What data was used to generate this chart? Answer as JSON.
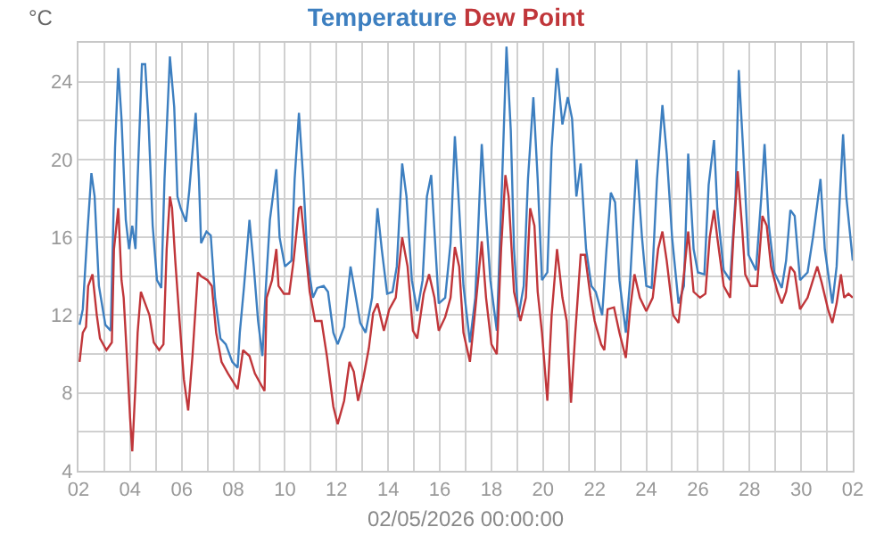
{
  "chart_data": {
    "type": "line",
    "xlabel": "02/05/2026 00:00:00",
    "ylabel": "°C",
    "grid": true,
    "legend": false,
    "marker": "none",
    "line_style": "solid",
    "xlim": [
      "2026-04-02",
      "2026-05-02"
    ],
    "xticks": [
      {
        "value": "2026-04-02",
        "label": "02"
      },
      {
        "value": "2026-04-03",
        "label": null
      },
      {
        "value": "2026-04-04",
        "label": "04"
      },
      {
        "value": "2026-04-05",
        "label": null
      },
      {
        "value": "2026-04-06",
        "label": "06"
      },
      {
        "value": "2026-04-07",
        "label": null
      },
      {
        "value": "2026-04-08",
        "label": "08"
      },
      {
        "value": "2026-04-09",
        "label": null
      },
      {
        "value": "2026-04-10",
        "label": "10"
      },
      {
        "value": "2026-04-11",
        "label": null
      },
      {
        "value": "2026-04-12",
        "label": "12"
      },
      {
        "value": "2026-04-13",
        "label": null
      },
      {
        "value": "2026-04-14",
        "label": "14"
      },
      {
        "value": "2026-04-15",
        "label": null
      },
      {
        "value": "2026-04-16",
        "label": "16"
      },
      {
        "value": "2026-04-17",
        "label": null
      },
      {
        "value": "2026-04-18",
        "label": "18"
      },
      {
        "value": "2026-04-19",
        "label": null
      },
      {
        "value": "2026-04-20",
        "label": "20"
      },
      {
        "value": "2026-04-21",
        "label": null
      },
      {
        "value": "2026-04-22",
        "label": "22"
      },
      {
        "value": "2026-04-23",
        "label": null
      },
      {
        "value": "2026-04-24",
        "label": "24"
      },
      {
        "value": "2026-04-25",
        "label": null
      },
      {
        "value": "2026-04-26",
        "label": "26"
      },
      {
        "value": "2026-04-27",
        "label": null
      },
      {
        "value": "2026-04-28",
        "label": "28"
      },
      {
        "value": "2026-04-29",
        "label": null
      },
      {
        "value": "2026-04-30",
        "label": "30"
      },
      {
        "value": "2026-05-01",
        "label": null
      },
      {
        "value": "2026-05-02",
        "label": "02"
      }
    ],
    "ylim": [
      4,
      26
    ],
    "yticks": [
      4,
      {
        "value": 6,
        "label": null
      },
      8,
      {
        "value": 10,
        "label": null
      },
      12,
      {
        "value": 14,
        "label": null
      },
      16,
      {
        "value": 18,
        "label": null
      },
      20,
      {
        "value": 22,
        "label": null
      },
      24,
      {
        "value": 26,
        "label": null
      }
    ],
    "series": [
      {
        "name": "Temperature",
        "color": "#3d7fc0",
        "x": [
          "2026-04-02T01:00",
          "2026-04-02T04:00",
          "2026-04-02T08:00",
          "2026-04-02T12:00",
          "2026-04-02T15:00",
          "2026-04-02T19:00",
          "2026-04-03T01:00",
          "2026-04-03T06:00",
          "2026-04-03T10:00",
          "2026-04-03T13:00",
          "2026-04-03T16:00",
          "2026-04-03T20:00",
          "2026-04-03T23:00",
          "2026-04-04T02:00",
          "2026-04-04T05:00",
          "2026-04-04T07:00",
          "2026-04-04T11:00",
          "2026-04-04T14:00",
          "2026-04-04T17:00",
          "2026-04-04T21:00",
          "2026-04-05T01:00",
          "2026-04-05T05:00",
          "2026-04-05T08:00",
          "2026-04-05T13:00",
          "2026-04-05T17:00",
          "2026-04-05T20:00",
          "2026-04-05T23:00",
          "2026-04-06T04:00",
          "2026-04-06T07:00",
          "2026-04-06T13:00",
          "2026-04-06T16:00",
          "2026-04-06T18:00",
          "2026-04-06T23:00",
          "2026-04-07T03:00",
          "2026-04-07T07:00",
          "2026-04-07T12:00",
          "2026-04-07T17:00",
          "2026-04-07T23:00",
          "2026-04-08T04:00",
          "2026-04-08T06:00",
          "2026-04-08T10:00",
          "2026-04-08T15:00",
          "2026-04-08T19:00",
          "2026-04-08T23:00",
          "2026-04-09T03:00",
          "2026-04-09T06:00",
          "2026-04-09T10:00",
          "2026-04-09T16:00",
          "2026-04-09T19:00",
          "2026-04-10T00:00",
          "2026-04-10T06:00",
          "2026-04-10T09:00",
          "2026-04-10T13:00",
          "2026-04-10T17:00",
          "2026-04-10T21:00",
          "2026-04-11T02:00",
          "2026-04-11T06:00",
          "2026-04-11T12:00",
          "2026-04-11T16:00",
          "2026-04-11T21:00",
          "2026-04-12T01:00",
          "2026-04-12T07:00",
          "2026-04-12T13:00",
          "2026-04-12T18:00",
          "2026-04-12T22:00",
          "2026-04-13T03:00",
          "2026-04-13T09:00",
          "2026-04-13T14:00",
          "2026-04-13T18:00",
          "2026-04-13T23:00",
          "2026-04-14T04:00",
          "2026-04-14T08:00",
          "2026-04-14T13:00",
          "2026-04-14T17:00",
          "2026-04-14T22:00",
          "2026-04-15T03:00",
          "2026-04-15T08:00",
          "2026-04-15T12:00",
          "2026-04-15T16:00",
          "2026-04-15T20:00",
          "2026-04-15T23:00",
          "2026-04-16T05:00",
          "2026-04-16T10:00",
          "2026-04-16T14:00",
          "2026-04-16T18:00",
          "2026-04-16T22:00",
          "2026-04-17T04:00",
          "2026-04-17T09:00",
          "2026-04-17T15:00",
          "2026-04-17T19:00",
          "2026-04-17T23:00",
          "2026-04-18T05:00",
          "2026-04-18T10:00",
          "2026-04-18T14:00",
          "2026-04-18T18:00",
          "2026-04-18T21:00",
          "2026-04-19T01:00",
          "2026-04-19T06:00",
          "2026-04-19T10:00",
          "2026-04-19T15:00",
          "2026-04-19T19:00",
          "2026-04-19T23:00",
          "2026-04-20T04:00",
          "2026-04-20T08:00",
          "2026-04-20T13:00",
          "2026-04-20T18:00",
          "2026-04-20T23:00",
          "2026-04-21T03:00",
          "2026-04-21T07:00",
          "2026-04-21T11:00",
          "2026-04-21T16:00",
          "2026-04-21T21:00",
          "2026-04-22T01:00",
          "2026-04-22T07:00",
          "2026-04-22T11:00",
          "2026-04-22T15:00",
          "2026-04-22T19:00",
          "2026-04-22T23:00",
          "2026-04-23T05:00",
          "2026-04-23T09:00",
          "2026-04-23T15:00",
          "2026-04-23T20:00",
          "2026-04-24T00:00",
          "2026-04-24T05:00",
          "2026-04-24T10:00",
          "2026-04-24T15:00",
          "2026-04-24T19:00",
          "2026-04-25T00:00",
          "2026-04-25T06:00",
          "2026-04-25T11:00",
          "2026-04-25T15:00",
          "2026-04-25T20:00",
          "2026-04-26T00:00",
          "2026-04-26T06:00",
          "2026-04-26T10:00",
          "2026-04-26T15:00",
          "2026-04-26T18:00",
          "2026-04-27T00:00",
          "2026-04-27T06:00",
          "2026-04-27T11:00",
          "2026-04-27T14:00",
          "2026-04-27T18:00",
          "2026-04-27T23:00",
          "2026-04-28T06:00",
          "2026-04-28T11:00",
          "2026-04-28T14:00",
          "2026-04-28T18:00",
          "2026-04-28T23:00",
          "2026-04-29T06:00",
          "2026-04-29T10:00",
          "2026-04-29T14:00",
          "2026-04-29T18:00",
          "2026-04-29T23:00",
          "2026-04-30T06:00",
          "2026-04-30T11:00",
          "2026-04-30T18:00",
          "2026-04-30T22:00",
          "2026-05-01T05:00",
          "2026-05-01T09:00",
          "2026-05-01T12:00",
          "2026-05-01T15:00",
          "2026-05-01T18:00",
          "2026-05-02T00:00"
        ],
        "values": [
          11.5,
          12.3,
          16,
          19.3,
          18.1,
          13.5,
          11.5,
          11.2,
          20.6,
          24.7,
          22.1,
          16.9,
          15.4,
          16.6,
          15.4,
          19,
          24.9,
          24.9,
          22.1,
          16.6,
          13.8,
          13.4,
          19,
          25.3,
          22.7,
          18.1,
          17.5,
          16.8,
          18.4,
          22.4,
          19,
          15.7,
          16.3,
          16.1,
          12.9,
          10.8,
          10.5,
          9.6,
          9.3,
          11.1,
          13.5,
          16.9,
          14.5,
          11.7,
          9.9,
          13.2,
          16.9,
          19.5,
          16,
          14.5,
          14.8,
          19,
          22.4,
          19,
          14.8,
          12.9,
          13.4,
          13.5,
          13.2,
          11.1,
          10.5,
          11.4,
          14.5,
          12.9,
          11.6,
          11.1,
          12.9,
          17.5,
          15.4,
          13.1,
          13.2,
          14.5,
          19.8,
          18.1,
          13.8,
          12.2,
          13.8,
          18.1,
          19.2,
          15.4,
          12.6,
          12.9,
          15.7,
          21.2,
          17.5,
          13.5,
          10.6,
          12.9,
          20.8,
          17.1,
          13.8,
          11.2,
          19,
          25.8,
          21.5,
          15.4,
          11.9,
          13.5,
          19,
          23.2,
          19,
          13.8,
          14.2,
          20.6,
          24.7,
          21.8,
          23.2,
          22.1,
          18.1,
          19.8,
          15.4,
          13.5,
          13.2,
          12,
          15.4,
          18.3,
          17.8,
          13.8,
          11.1,
          13.8,
          20,
          16,
          13.5,
          13.4,
          19,
          22.8,
          20.3,
          16,
          12.6,
          13.5,
          20.3,
          15.4,
          14.2,
          14.1,
          18.7,
          21,
          17.5,
          14.3,
          13.8,
          18.1,
          24.6,
          20.6,
          15.1,
          14.3,
          18.1,
          20.8,
          16.6,
          14.2,
          13.4,
          14.8,
          17.4,
          17.1,
          13.8,
          14.2,
          16,
          19,
          15.4,
          12.6,
          14.5,
          18.1,
          21.3,
          18.1,
          14.8
        ]
      },
      {
        "name": "Dew Point",
        "color": "#c0363a",
        "x": [
          "2026-04-02T01:00",
          "2026-04-02T04:00",
          "2026-04-02T07:00",
          "2026-04-02T09:00",
          "2026-04-02T13:00",
          "2026-04-02T17:00",
          "2026-04-02T20:00",
          "2026-04-03T02:00",
          "2026-04-03T07:00",
          "2026-04-03T09:00",
          "2026-04-03T13:00",
          "2026-04-03T16:00",
          "2026-04-03T18:00",
          "2026-04-03T21:00",
          "2026-04-04T00:00",
          "2026-04-04T02:00",
          "2026-04-04T05:00",
          "2026-04-04T07:00",
          "2026-04-04T10:00",
          "2026-04-04T14:00",
          "2026-04-04T18:00",
          "2026-04-04T22:00",
          "2026-04-05T03:00",
          "2026-04-05T07:00",
          "2026-04-05T10:00",
          "2026-04-05T13:00",
          "2026-04-05T15:00",
          "2026-04-05T18:00",
          "2026-04-05T22:00",
          "2026-04-06T02:00",
          "2026-04-06T06:00",
          "2026-04-06T10:00",
          "2026-04-06T15:00",
          "2026-04-06T18:00",
          "2026-04-07T00:00",
          "2026-04-07T04:00",
          "2026-04-07T08:00",
          "2026-04-07T13:00",
          "2026-04-07T19:00",
          "2026-04-08T04:00",
          "2026-04-08T09:00",
          "2026-04-08T15:00",
          "2026-04-08T20:00",
          "2026-04-09T02:00",
          "2026-04-09T05:00",
          "2026-04-09T07:00",
          "2026-04-09T12:00",
          "2026-04-09T16:00",
          "2026-04-09T18:00",
          "2026-04-09T23:00",
          "2026-04-10T04:00",
          "2026-04-10T08:00",
          "2026-04-10T13:00",
          "2026-04-10T15:00",
          "2026-04-10T19:00",
          "2026-04-10T23:00",
          "2026-04-11T04:00",
          "2026-04-11T10:00",
          "2026-04-11T15:00",
          "2026-04-11T21:00",
          "2026-04-12T01:00",
          "2026-04-12T07:00",
          "2026-04-12T12:00",
          "2026-04-12T16:00",
          "2026-04-12T20:00",
          "2026-04-13T01:00",
          "2026-04-13T06:00",
          "2026-04-13T10:00",
          "2026-04-13T14:00",
          "2026-04-13T20:00",
          "2026-04-14T01:00",
          "2026-04-14T07:00",
          "2026-04-14T13:00",
          "2026-04-14T18:00",
          "2026-04-14T23:00",
          "2026-04-15T03:00",
          "2026-04-15T09:00",
          "2026-04-15T14:00",
          "2026-04-15T19:00",
          "2026-04-15T23:00",
          "2026-04-16T05:00",
          "2026-04-16T10:00",
          "2026-04-16T14:00",
          "2026-04-16T18:00",
          "2026-04-16T22:00",
          "2026-04-17T04:00",
          "2026-04-17T09:00",
          "2026-04-17T15:00",
          "2026-04-17T19:00",
          "2026-04-18T00:00",
          "2026-04-18T05:00",
          "2026-04-18T09:00",
          "2026-04-18T13:00",
          "2026-04-18T16:00",
          "2026-04-18T21:00",
          "2026-04-19T03:00",
          "2026-04-19T08:00",
          "2026-04-19T12:00",
          "2026-04-19T16:00",
          "2026-04-19T19:00",
          "2026-04-19T23:00",
          "2026-04-20T04:00",
          "2026-04-20T08:00",
          "2026-04-20T13:00",
          "2026-04-20T18:00",
          "2026-04-20T22:00",
          "2026-04-21T02:00",
          "2026-04-21T06:00",
          "2026-04-21T11:00",
          "2026-04-21T15:00",
          "2026-04-21T20:00",
          "2026-04-22T00:00",
          "2026-04-22T06:00",
          "2026-04-22T09:00",
          "2026-04-22T12:00",
          "2026-04-22T18:00",
          "2026-04-22T23:00",
          "2026-04-23T05:00",
          "2026-04-23T09:00",
          "2026-04-23T13:00",
          "2026-04-23T18:00",
          "2026-04-24T00:00",
          "2026-04-24T06:00",
          "2026-04-24T11:00",
          "2026-04-24T15:00",
          "2026-04-24T19:00",
          "2026-04-25T01:00",
          "2026-04-25T06:00",
          "2026-04-25T11:00",
          "2026-04-25T15:00",
          "2026-04-25T20:00",
          "2026-04-26T02:00",
          "2026-04-26T07:00",
          "2026-04-26T11:00",
          "2026-04-26T15:00",
          "2026-04-26T18:00",
          "2026-04-27T00:00",
          "2026-04-27T06:00",
          "2026-04-27T09:00",
          "2026-04-27T13:00",
          "2026-04-27T17:00",
          "2026-04-27T20:00",
          "2026-04-28T01:00",
          "2026-04-28T07:00",
          "2026-04-28T12:00",
          "2026-04-28T16:00",
          "2026-04-28T20:00",
          "2026-04-29T02:00",
          "2026-04-29T06:00",
          "2026-04-29T10:00",
          "2026-04-29T14:00",
          "2026-04-29T18:00",
          "2026-04-29T23:00",
          "2026-04-30T06:00",
          "2026-04-30T11:00",
          "2026-04-30T15:00",
          "2026-04-30T19:00",
          "2026-05-01T01:00",
          "2026-05-01T05:00",
          "2026-05-01T09:00",
          "2026-05-01T13:00",
          "2026-05-01T16:00",
          "2026-05-01T20:00",
          "2026-05-02T00:00"
        ],
        "values": [
          9.6,
          11.1,
          11.4,
          13.5,
          14.1,
          12,
          10.8,
          10.2,
          10.6,
          15.4,
          17.5,
          13.8,
          12.9,
          9.9,
          6.7,
          5,
          8.4,
          11.1,
          13.2,
          12.6,
          12,
          10.6,
          10.2,
          10.5,
          15.4,
          18.1,
          17.5,
          14.8,
          11.7,
          8.7,
          7.1,
          9.9,
          14.2,
          14,
          13.8,
          13.5,
          11.1,
          9.6,
          9,
          8.2,
          10.2,
          9.9,
          9,
          8.4,
          8.1,
          12.9,
          13.8,
          15.4,
          13.5,
          13.1,
          13.1,
          14.8,
          17.5,
          17.6,
          15.4,
          13.2,
          11.7,
          11.7,
          9.9,
          7.3,
          6.4,
          7.6,
          9.6,
          9.1,
          7.6,
          8.8,
          10.3,
          12.1,
          12.6,
          11.2,
          12.3,
          12.9,
          16,
          14.5,
          11.2,
          10.8,
          13.1,
          14.1,
          12.9,
          11.2,
          11.9,
          12.9,
          15.5,
          14.5,
          11.1,
          9.6,
          12.3,
          15.8,
          12.9,
          10.5,
          10,
          15.4,
          19.2,
          18.1,
          13.2,
          11.7,
          12.9,
          17.5,
          16.6,
          13.2,
          11.1,
          7.6,
          12,
          15.4,
          12.9,
          11.7,
          7.5,
          11.1,
          15.1,
          15.1,
          13,
          11.7,
          10.5,
          10.2,
          12.3,
          12.4,
          11.1,
          9.8,
          12.3,
          14.1,
          12.9,
          12.2,
          12.9,
          15.4,
          16.3,
          14.8,
          12,
          11.6,
          14.1,
          16.3,
          13.2,
          12.9,
          13.1,
          16,
          17.4,
          16,
          13.5,
          12.9,
          16,
          19.4,
          16.6,
          14.1,
          13.5,
          13.5,
          17.1,
          16.6,
          14.5,
          13.2,
          12.6,
          13.2,
          14.5,
          14.2,
          12.3,
          12.9,
          13.8,
          14.5,
          13.7,
          12.3,
          11.6,
          12.6,
          14.1,
          12.9,
          13.1,
          12.9
        ]
      }
    ]
  }
}
